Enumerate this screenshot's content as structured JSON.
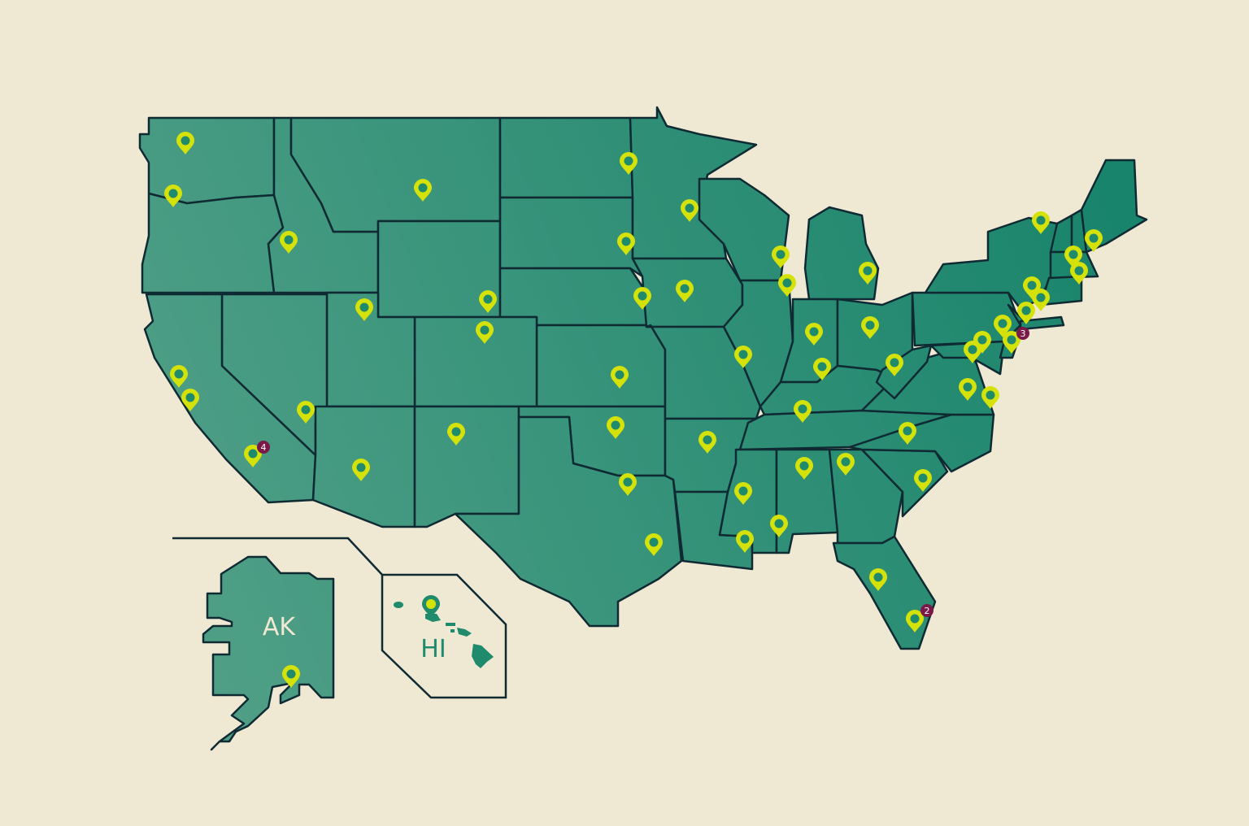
{
  "map": {
    "inset_labels": {
      "alaska": "AK",
      "hawaii": "HI"
    },
    "cluster_badges": [
      {
        "region": "southern-california",
        "count": "4"
      },
      {
        "region": "mid-atlantic",
        "count": "3"
      },
      {
        "region": "south-florida",
        "count": "2"
      }
    ],
    "colors": {
      "background": "#efe9d3",
      "state_fill_light": "#4f9f86",
      "state_fill_dark": "#16836a",
      "border": "#0f2a33",
      "pin": "#d4e20a",
      "pin_dot": "#1f8a6c",
      "badge": "#7a1848",
      "ak_label": "#efe9d3",
      "hi_label": "#1f8a6c"
    },
    "pin_icon": "map-pin-icon"
  }
}
